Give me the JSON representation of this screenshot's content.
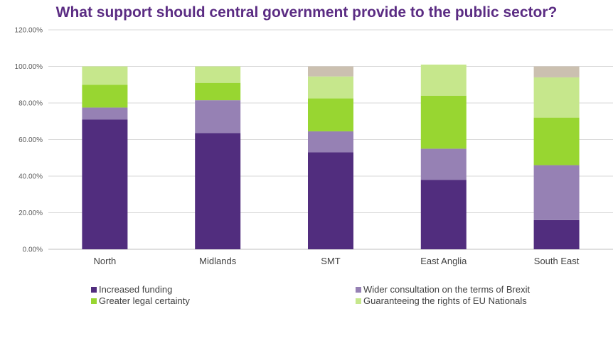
{
  "chart_data": {
    "type": "bar",
    "stacked": true,
    "title": "What support should central government provide to the public sector?",
    "categories": [
      "North",
      "Midlands",
      "SMT",
      "East Anglia",
      "South East"
    ],
    "ylim": [
      0,
      1.2
    ],
    "yticks": [
      "0.00%",
      "20.00%",
      "40.00%",
      "60.00%",
      "80.00%",
      "100.00%",
      "120.00%"
    ],
    "grid": true,
    "legend_position": "bottom",
    "series": [
      {
        "name": "Increased funding",
        "color": "#512d7e",
        "values": [
          0.71,
          0.635,
          0.53,
          0.38,
          0.16
        ]
      },
      {
        "name": "Wider consultation on the terms of Brexit",
        "color": "#9681b4",
        "values": [
          0.065,
          0.18,
          0.115,
          0.17,
          0.3
        ]
      },
      {
        "name": "Greater legal certainty",
        "color": "#98d631",
        "values": [
          0.125,
          0.095,
          0.18,
          0.29,
          0.26
        ]
      },
      {
        "name": "Guaranteeing the rights of EU Nationals",
        "color": "#c6e78c",
        "values": [
          0.1,
          0.09,
          0.12,
          0.17,
          0.22
        ]
      },
      {
        "color": "#cbc0b0",
        "values": [
          0,
          0,
          0.055,
          0,
          0.06
        ]
      }
    ]
  }
}
